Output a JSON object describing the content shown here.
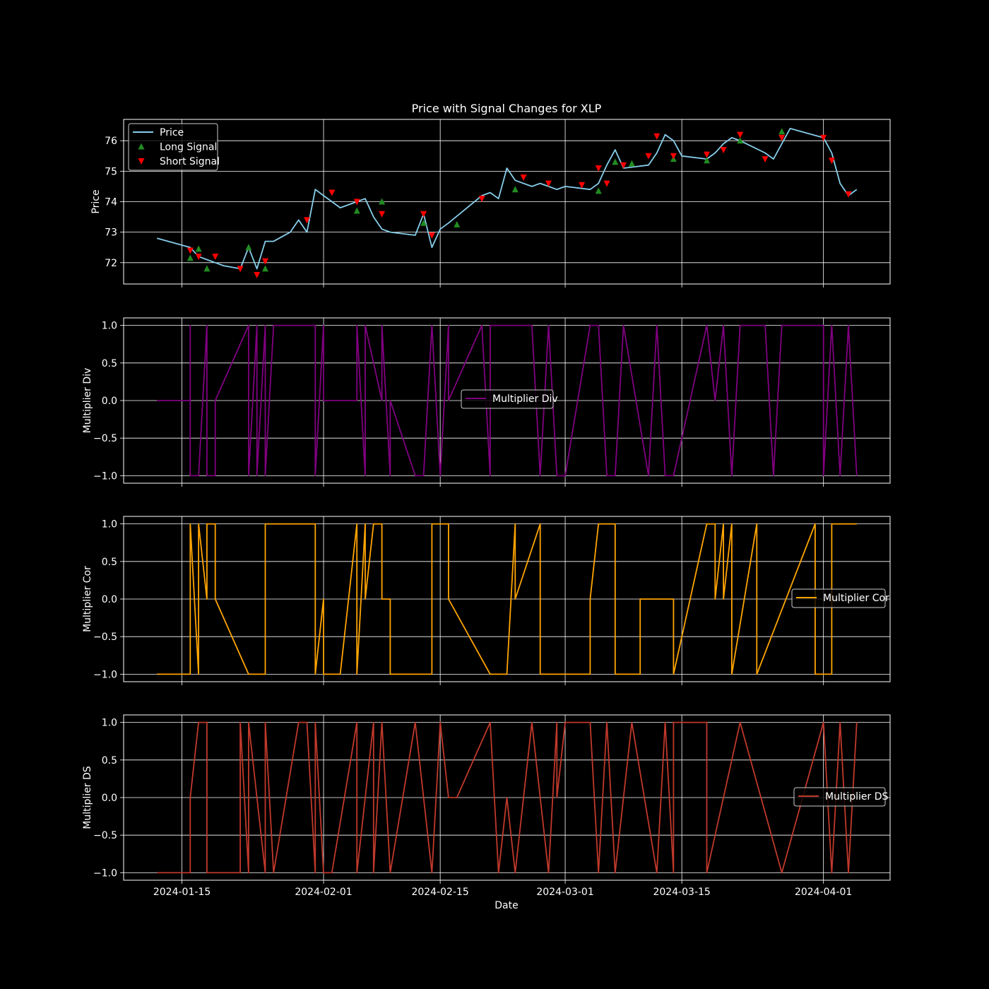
{
  "figure": {
    "title": "Price with Signal Changes for XLP",
    "xlabel": "Date",
    "background": "#000000",
    "grid_color": "#ffffff",
    "x_ticks": [
      "2024-01-15",
      "2024-02-01",
      "2024-02-15",
      "2024-03-01",
      "2024-03-15",
      "2024-04-01"
    ]
  },
  "chart_data": [
    {
      "type": "line",
      "title": "Price with Signal Changes for XLP",
      "ylabel": "Price",
      "xlim": [
        "2024-01-08",
        "2024-04-09"
      ],
      "ylim": [
        71.3,
        76.7
      ],
      "y_ticks": [
        72,
        73,
        74,
        75,
        76
      ],
      "grid": true,
      "legend": "upper left",
      "series": [
        {
          "name": "Price",
          "color": "#87ceeb",
          "kind": "line",
          "x": [
            "2024-01-12",
            "2024-01-16",
            "2024-01-17",
            "2024-01-18",
            "2024-01-19",
            "2024-01-20",
            "2024-01-22",
            "2024-01-23",
            "2024-01-24",
            "2024-01-25",
            "2024-01-26",
            "2024-01-28",
            "2024-01-29",
            "2024-01-30",
            "2024-01-31",
            "2024-02-01",
            "2024-02-02",
            "2024-02-03",
            "2024-02-05",
            "2024-02-06",
            "2024-02-07",
            "2024-02-08",
            "2024-02-09",
            "2024-02-12",
            "2024-02-13",
            "2024-02-14",
            "2024-02-15",
            "2024-02-16",
            "2024-02-20",
            "2024-02-21",
            "2024-02-22",
            "2024-02-23",
            "2024-02-24",
            "2024-02-26",
            "2024-02-27",
            "2024-02-28",
            "2024-02-29",
            "2024-03-01",
            "2024-03-04",
            "2024-03-05",
            "2024-03-06",
            "2024-03-07",
            "2024-03-08",
            "2024-03-11",
            "2024-03-12",
            "2024-03-13",
            "2024-03-14",
            "2024-03-15",
            "2024-03-18",
            "2024-03-19",
            "2024-03-20",
            "2024-03-21",
            "2024-03-22",
            "2024-03-25",
            "2024-03-26",
            "2024-03-27",
            "2024-03-28",
            "2024-04-01",
            "2024-04-02",
            "2024-04-03",
            "2024-04-04",
            "2024-04-05"
          ],
          "values": [
            72.8,
            72.5,
            72.2,
            72.1,
            72.0,
            71.9,
            71.8,
            72.5,
            71.8,
            72.7,
            72.7,
            73.0,
            73.4,
            73.0,
            74.4,
            74.2,
            74.0,
            73.8,
            74.0,
            74.1,
            73.5,
            73.1,
            73.0,
            72.9,
            73.6,
            72.5,
            73.1,
            73.3,
            74.2,
            74.3,
            74.1,
            75.1,
            74.7,
            74.5,
            74.6,
            74.5,
            74.4,
            74.5,
            74.4,
            74.6,
            75.2,
            75.7,
            75.1,
            75.2,
            75.6,
            76.2,
            76.0,
            75.5,
            75.4,
            75.6,
            75.9,
            76.1,
            76.0,
            75.6,
            75.4,
            75.9,
            76.4,
            76.1,
            75.6,
            74.6,
            74.2,
            74.4
          ]
        },
        {
          "name": "Long Signal",
          "color": "#228b22",
          "kind": "marker-up",
          "x": [
            "2024-01-16",
            "2024-01-17",
            "2024-01-18",
            "2024-01-23",
            "2024-01-25",
            "2024-02-05",
            "2024-02-08",
            "2024-02-13",
            "2024-02-17",
            "2024-02-24",
            "2024-03-05",
            "2024-03-07",
            "2024-03-09",
            "2024-03-14",
            "2024-03-18",
            "2024-03-22",
            "2024-03-27"
          ],
          "values": [
            72.15,
            72.45,
            71.8,
            72.5,
            71.8,
            73.7,
            74.0,
            73.3,
            73.25,
            74.4,
            74.35,
            75.3,
            75.25,
            75.4,
            75.35,
            76.0,
            76.3
          ]
        },
        {
          "name": "Short Signal",
          "color": "#ff0000",
          "kind": "marker-down",
          "x": [
            "2024-01-16",
            "2024-01-17",
            "2024-01-19",
            "2024-01-22",
            "2024-01-24",
            "2024-01-25",
            "2024-01-30",
            "2024-02-02",
            "2024-02-05",
            "2024-02-08",
            "2024-02-13",
            "2024-02-14",
            "2024-02-20",
            "2024-02-25",
            "2024-02-28",
            "2024-03-03",
            "2024-03-05",
            "2024-03-06",
            "2024-03-08",
            "2024-03-11",
            "2024-03-12",
            "2024-03-14",
            "2024-03-18",
            "2024-03-20",
            "2024-03-22",
            "2024-03-25",
            "2024-03-27",
            "2024-04-01",
            "2024-04-02",
            "2024-04-04"
          ],
          "values": [
            72.4,
            72.2,
            72.2,
            71.8,
            71.6,
            72.05,
            73.4,
            74.3,
            74.0,
            73.6,
            73.6,
            72.9,
            74.1,
            74.8,
            74.6,
            74.55,
            75.1,
            74.6,
            75.2,
            75.5,
            76.15,
            75.5,
            75.55,
            75.7,
            76.2,
            75.4,
            76.1,
            76.1,
            75.35,
            74.25
          ]
        }
      ]
    },
    {
      "type": "line",
      "ylabel": "Multiplier Div",
      "ylim": [
        -1.1,
        1.1
      ],
      "y_ticks": [
        "1.0",
        "0.5",
        "0.0",
        "−0.5",
        "−1.0"
      ],
      "grid": true,
      "legend": "center",
      "series": [
        {
          "name": "Multiplier Div",
          "color": "#800080",
          "x": [
            "2024-01-12",
            "2024-01-16",
            "2024-01-16",
            "2024-01-16",
            "2024-01-17",
            "2024-01-18",
            "2024-01-18",
            "2024-01-18",
            "2024-01-19",
            "2024-01-19",
            "2024-01-23",
            "2024-01-23",
            "2024-01-24",
            "2024-01-24",
            "2024-01-25",
            "2024-01-25",
            "2024-01-26",
            "2024-01-26",
            "2024-01-31",
            "2024-01-31",
            "2024-02-01",
            "2024-02-01",
            "2024-02-02",
            "2024-02-02",
            "2024-02-05",
            "2024-02-05",
            "2024-02-06",
            "2024-02-06",
            "2024-02-08",
            "2024-02-08",
            "2024-02-09",
            "2024-02-09",
            "2024-02-12",
            "2024-02-13",
            "2024-02-14",
            "2024-02-15",
            "2024-02-16",
            "2024-02-16",
            "2024-02-20",
            "2024-02-21",
            "2024-02-21",
            "2024-02-26",
            "2024-02-27",
            "2024-02-28",
            "2024-02-29",
            "2024-03-01",
            "2024-03-04",
            "2024-03-05",
            "2024-03-06",
            "2024-03-07",
            "2024-03-08",
            "2024-03-11",
            "2024-03-12",
            "2024-03-13",
            "2024-03-14",
            "2024-03-18",
            "2024-03-19",
            "2024-03-20",
            "2024-03-21",
            "2024-03-22",
            "2024-03-25",
            "2024-03-26",
            "2024-03-27",
            "2024-04-01",
            "2024-04-01",
            "2024-04-02",
            "2024-04-03",
            "2024-04-04",
            "2024-04-05"
          ],
          "values": [
            0,
            0,
            1,
            -1,
            -1,
            1,
            0,
            -1,
            -1,
            0,
            1,
            -1,
            1,
            -1,
            1,
            -1,
            1,
            1,
            1,
            -1,
            1,
            0,
            0,
            0,
            0,
            1,
            -1,
            1,
            0,
            1,
            -1,
            0,
            -1,
            -1,
            1,
            -1,
            1,
            0,
            1,
            -1,
            1,
            1,
            -1,
            1,
            -1,
            -1,
            1,
            1,
            -1,
            -1,
            1,
            -1,
            1,
            -1,
            -1,
            1,
            0,
            1,
            -1,
            1,
            1,
            -1,
            1,
            1,
            -1,
            1,
            -1,
            1,
            -1
          ]
        }
      ]
    },
    {
      "type": "line",
      "ylabel": "Multiplier Cor",
      "ylim": [
        -1.1,
        1.1
      ],
      "y_ticks": [
        "1.0",
        "0.5",
        "0.0",
        "−0.5",
        "−1.0"
      ],
      "grid": true,
      "legend": "center right",
      "series": [
        {
          "name": "Multiplier Cor",
          "color": "#ffa500",
          "x": [
            "2024-01-12",
            "2024-01-16",
            "2024-01-16",
            "2024-01-17",
            "2024-01-17",
            "2024-01-18",
            "2024-01-18",
            "2024-01-19",
            "2024-01-19",
            "2024-01-23",
            "2024-01-25",
            "2024-01-25",
            "2024-01-31",
            "2024-01-31",
            "2024-02-01",
            "2024-02-01",
            "2024-02-03",
            "2024-02-05",
            "2024-02-05",
            "2024-02-06",
            "2024-02-06",
            "2024-02-07",
            "2024-02-08",
            "2024-02-08",
            "2024-02-09",
            "2024-02-09",
            "2024-02-14",
            "2024-02-14",
            "2024-02-16",
            "2024-02-16",
            "2024-02-21",
            "2024-02-23",
            "2024-02-24",
            "2024-02-24",
            "2024-02-27",
            "2024-02-27",
            "2024-03-04",
            "2024-03-04",
            "2024-03-05",
            "2024-03-07",
            "2024-03-07",
            "2024-03-10",
            "2024-03-10",
            "2024-03-14",
            "2024-03-14",
            "2024-03-18",
            "2024-03-19",
            "2024-03-19",
            "2024-03-20",
            "2024-03-20",
            "2024-03-21",
            "2024-03-21",
            "2024-03-24",
            "2024-03-24",
            "2024-03-31",
            "2024-03-31",
            "2024-04-02",
            "2024-04-02",
            "2024-04-05"
          ],
          "values": [
            -1,
            -1,
            1,
            -1,
            1,
            0,
            1,
            1,
            0,
            -1,
            -1,
            1,
            1,
            -1,
            0,
            -1,
            -1,
            1,
            -1,
            1,
            0,
            1,
            1,
            0,
            0,
            -1,
            -1,
            1,
            1,
            0,
            -1,
            -1,
            1,
            0,
            1,
            -1,
            -1,
            0,
            1,
            1,
            -1,
            -1,
            0,
            0,
            -1,
            1,
            1,
            0,
            1,
            0,
            1,
            -1,
            1,
            -1,
            1,
            -1,
            -1,
            1,
            1
          ]
        }
      ]
    },
    {
      "type": "line",
      "ylabel": "Multiplier DS",
      "ylim": [
        -1.1,
        1.1
      ],
      "y_ticks": [
        "1.0",
        "0.5",
        "0.0",
        "−0.5",
        "−1.0"
      ],
      "grid": true,
      "legend": "center right",
      "series": [
        {
          "name": "Multiplier DS",
          "color": "#c0392b",
          "x": [
            "2024-01-12",
            "2024-01-16",
            "2024-01-16",
            "2024-01-17",
            "2024-01-18",
            "2024-01-18",
            "2024-01-22",
            "2024-01-22",
            "2024-01-23",
            "2024-01-23",
            "2024-01-25",
            "2024-01-25",
            "2024-01-26",
            "2024-01-29",
            "2024-01-30",
            "2024-01-31",
            "2024-01-31",
            "2024-02-01",
            "2024-02-02",
            "2024-02-05",
            "2024-02-05",
            "2024-02-06",
            "2024-02-07",
            "2024-02-07",
            "2024-02-08",
            "2024-02-09",
            "2024-02-12",
            "2024-02-14",
            "2024-02-15",
            "2024-02-16",
            "2024-02-17",
            "2024-02-21",
            "2024-02-22",
            "2024-02-23",
            "2024-02-24",
            "2024-02-26",
            "2024-02-28",
            "2024-02-29",
            "2024-02-29",
            "2024-03-01",
            "2024-03-04",
            "2024-03-05",
            "2024-03-06",
            "2024-03-07",
            "2024-03-08",
            "2024-03-09",
            "2024-03-12",
            "2024-03-13",
            "2024-03-14",
            "2024-03-14",
            "2024-03-18",
            "2024-03-18",
            "2024-03-22",
            "2024-03-22",
            "2024-03-27",
            "2024-03-27",
            "2024-04-01",
            "2024-04-02",
            "2024-04-03",
            "2024-04-04",
            "2024-04-05"
          ],
          "values": [
            -1,
            -1,
            0,
            1,
            1,
            -1,
            -1,
            1,
            -1,
            1,
            -1,
            1,
            -1,
            1,
            1,
            -1,
            1,
            -1,
            -1,
            1,
            -1,
            0,
            1,
            -1,
            1,
            -1,
            1,
            -1,
            1,
            0,
            0,
            1,
            -1,
            0,
            -1,
            1,
            -1,
            1,
            0,
            1,
            1,
            -1,
            1,
            -1,
            0,
            1,
            -1,
            1,
            -1,
            1,
            1,
            -1,
            1,
            1,
            -1,
            -1,
            1,
            -1,
            1,
            -1,
            1
          ]
        }
      ]
    }
  ]
}
